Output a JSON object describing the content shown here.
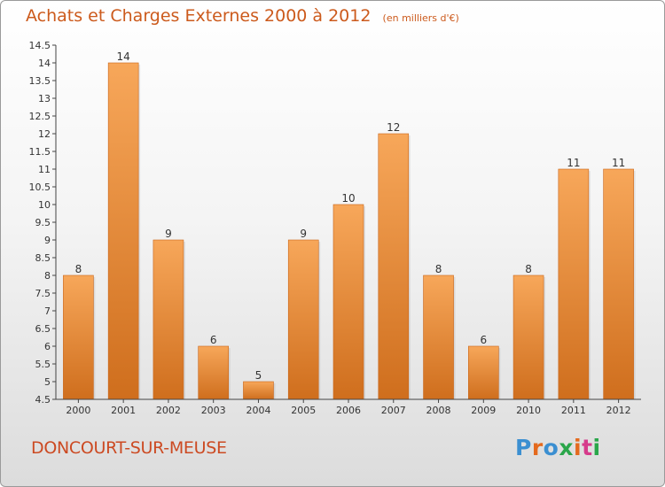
{
  "header": {
    "title": "Achats et Charges Externes 2000 à 2012",
    "subtitle": "(en milliers d'€)"
  },
  "footer": {
    "location": "DONCOURT-SUR-MEUSE",
    "logo_text": "Proxiti",
    "logo_colors": [
      "#3b8fd1",
      "#e46a1e",
      "#3b8fd1",
      "#2aa64a",
      "#e46a1e",
      "#d63b8b",
      "#2aa64a"
    ]
  },
  "colors": {
    "bar_top": "#f7a75a",
    "bar_bottom": "#cf6e1d",
    "title": "#cc5a1c",
    "axis": "#555555"
  },
  "chart_data": {
    "type": "bar",
    "categories": [
      "2000",
      "2001",
      "2002",
      "2003",
      "2004",
      "2005",
      "2006",
      "2007",
      "2008",
      "2009",
      "2010",
      "2011",
      "2012"
    ],
    "values": [
      8,
      14,
      9,
      6,
      5,
      9,
      10,
      12,
      8,
      6,
      8,
      11,
      11
    ],
    "data_labels": [
      "8",
      "14",
      "9",
      "6",
      "5",
      "9",
      "10",
      "12",
      "8",
      "6",
      "8",
      "11",
      "11"
    ],
    "y_ticks": [
      "4.5",
      "5",
      "5.5",
      "6",
      "6.5",
      "7",
      "7.5",
      "8",
      "8.5",
      "9",
      "9.5",
      "10",
      "10.5",
      "11",
      "11.5",
      "12",
      "12.5",
      "13",
      "13.5",
      "14",
      "14.5"
    ],
    "ylim": [
      4.5,
      14.5
    ],
    "grid": false,
    "legend": "none"
  }
}
